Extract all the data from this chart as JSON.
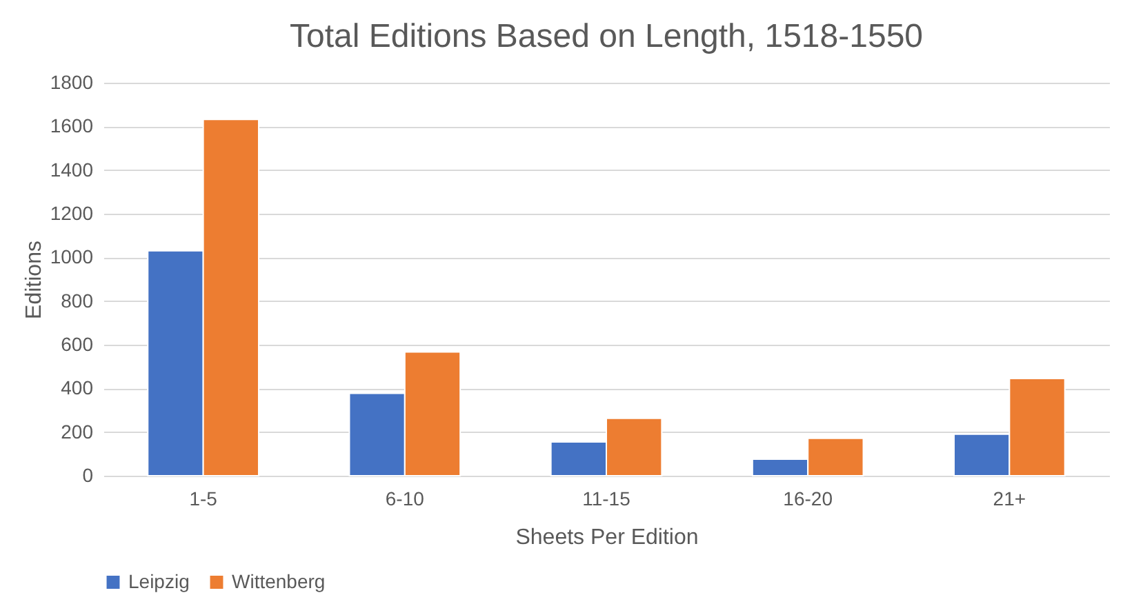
{
  "chart_data": {
    "type": "bar",
    "title": "Total Editions Based on Length, 1518-1550",
    "xlabel": "Sheets Per Edition",
    "ylabel": "Editions",
    "categories": [
      "1-5",
      "6-10",
      "11-15",
      "16-20",
      "21+"
    ],
    "series": [
      {
        "name": "Leipzig",
        "color": "#4472c4",
        "values": [
          1030,
          377,
          155,
          76,
          190
        ]
      },
      {
        "name": "Wittenberg",
        "color": "#ed7d31",
        "values": [
          1632,
          567,
          263,
          171,
          445
        ]
      }
    ],
    "ylim": [
      0,
      1800
    ],
    "yticks": [
      0,
      200,
      400,
      600,
      800,
      1000,
      1200,
      1400,
      1600,
      1800
    ],
    "grid": "y",
    "legend": "bottom"
  }
}
